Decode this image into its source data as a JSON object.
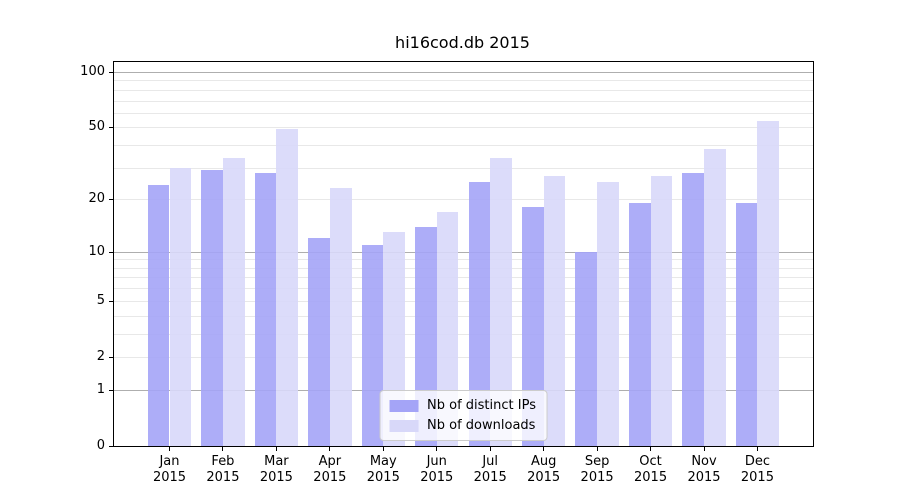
{
  "title": "hi16cod.db 2015",
  "chart_data": {
    "type": "bar",
    "title": "hi16cod.db 2015",
    "categories": [
      "Jan 2015",
      "Feb 2015",
      "Mar 2015",
      "Apr 2015",
      "May 2015",
      "Jun 2015",
      "Jul 2015",
      "Aug 2015",
      "Sep 2015",
      "Oct 2015",
      "Nov 2015",
      "Dec 2015"
    ],
    "series": [
      {
        "name": "Nb of distinct IPs",
        "color": "#a4a4f7",
        "values": [
          24,
          29,
          28,
          12,
          11,
          14,
          25,
          18,
          10,
          19,
          28,
          19
        ]
      },
      {
        "name": "Nb of downloads",
        "color": "#d8d8f9",
        "values": [
          30,
          34,
          49,
          23,
          13,
          17,
          34,
          27,
          25,
          27,
          38,
          54
        ]
      }
    ],
    "yscale": "log10(1+v)",
    "yticks": [
      0,
      1,
      2,
      5,
      10,
      20,
      50,
      100
    ],
    "minor_gridlines": [
      2,
      3,
      4,
      5,
      6,
      7,
      8,
      9,
      20,
      30,
      40,
      50,
      60,
      70,
      80,
      90
    ],
    "major_gridlines": [
      1,
      10,
      100
    ],
    "ylim": [
      0,
      113
    ],
    "xlabel": "",
    "ylabel": "",
    "grid": true,
    "legend_position": "lower center"
  }
}
